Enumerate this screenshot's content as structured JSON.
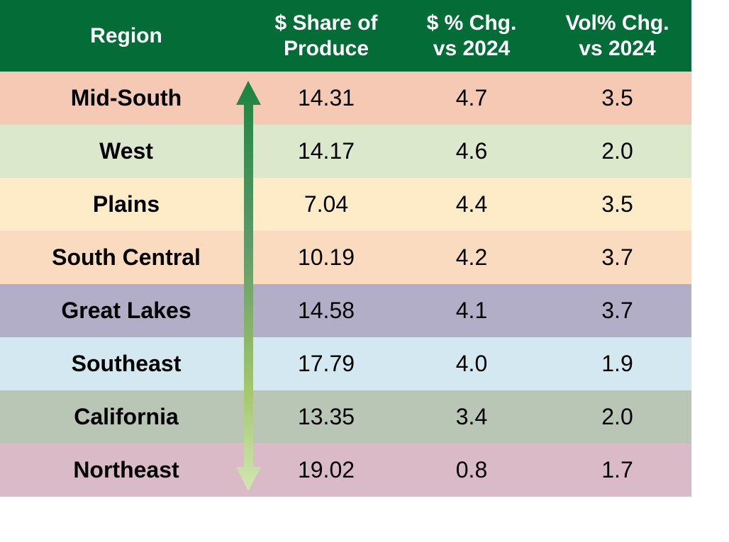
{
  "chart_data": {
    "type": "table",
    "columns": [
      "Region",
      "$ Share of Produce",
      "$ % Chg. vs 2024",
      "Vol% Chg. vs 2024"
    ],
    "header_lines": [
      [
        "Region"
      ],
      [
        "$ Share of",
        "Produce"
      ],
      [
        "$ % Chg.",
        "vs 2024"
      ],
      [
        "Vol% Chg.",
        "vs 2024"
      ]
    ],
    "rows": [
      {
        "region": "Mid-South",
        "share": "14.31",
        "dollar_chg": "4.7",
        "vol_chg": "3.5",
        "color": "#f6c9b5"
      },
      {
        "region": "West",
        "share": "14.17",
        "dollar_chg": "4.6",
        "vol_chg": "2.0",
        "color": "#dbe8cb"
      },
      {
        "region": "Plains",
        "share": "7.04",
        "dollar_chg": "4.4",
        "vol_chg": "3.5",
        "color": "#feebc8"
      },
      {
        "region": "South Central",
        "share": "10.19",
        "dollar_chg": "4.2",
        "vol_chg": "3.7",
        "color": "#fadbbf"
      },
      {
        "region": "Great Lakes",
        "share": "14.58",
        "dollar_chg": "4.1",
        "vol_chg": "3.7",
        "color": "#b3aec8"
      },
      {
        "region": "Southeast",
        "share": "17.79",
        "dollar_chg": "4.0",
        "vol_chg": "1.9",
        "color": "#d3e8f0"
      },
      {
        "region": "California",
        "share": "13.35",
        "dollar_chg": "3.4",
        "vol_chg": "2.0",
        "color": "#b9c5b5"
      },
      {
        "region": "Northeast",
        "share": "19.02",
        "dollar_chg": "0.8",
        "vol_chg": "1.7",
        "color": "#dbbac8"
      }
    ],
    "header_color": "#046d37",
    "arrow": {
      "direction": "double",
      "color_top": "#1a8440",
      "color_bottom": "#d2e7b3"
    }
  }
}
